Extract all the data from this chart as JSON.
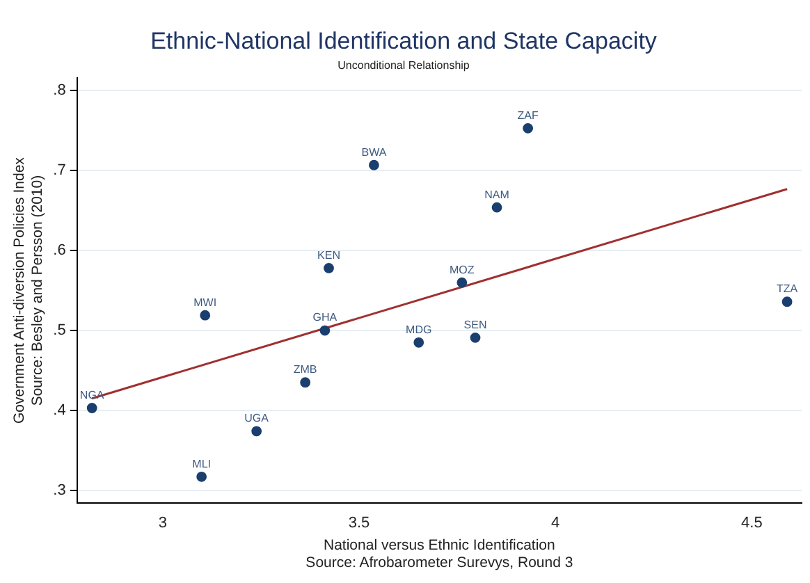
{
  "chart_data": {
    "type": "scatter",
    "title": "Ethnic-National Identification and State Capacity",
    "subtitle": "Unconditional Relationship",
    "xlabel": "National versus Ethnic Identification\nSource: Afrobarometer Surevys, Round 3",
    "ylabel": "Government Anti-diversion Policies Index\nSource: Besley and Persson (2010)",
    "x": [
      2.82,
      3.099,
      3.239,
      3.363,
      3.413,
      3.108,
      3.423,
      3.538,
      3.652,
      3.93,
      3.851,
      3.762,
      3.796,
      4.59
    ],
    "series": [
      {
        "color": "#1a3f6f",
        "marker": "circle",
        "values": [
          0.403,
          0.317,
          0.374,
          0.435,
          0.5,
          0.519,
          0.578,
          0.707,
          0.485,
          0.753,
          0.654,
          0.56,
          0.491,
          0.536
        ]
      },
      {
        "type": "line",
        "marker": "none",
        "color": "#a03030",
        "x": [
          2.82,
          4.59
        ],
        "values": [
          0.415,
          0.677
        ]
      }
    ],
    "annotations": [
      {
        "text": "NGA",
        "x": 2.82,
        "y": 0.403
      },
      {
        "text": "MLI",
        "x": 3.099,
        "y": 0.317
      },
      {
        "text": "UGA",
        "x": 3.239,
        "y": 0.374
      },
      {
        "text": "ZMB",
        "x": 3.363,
        "y": 0.435
      },
      {
        "text": "GHA",
        "x": 3.413,
        "y": 0.5
      },
      {
        "text": "MWI",
        "x": 3.108,
        "y": 0.519
      },
      {
        "text": "KEN",
        "x": 3.423,
        "y": 0.578
      },
      {
        "text": "BWA",
        "x": 3.538,
        "y": 0.707
      },
      {
        "text": "MDG",
        "x": 3.652,
        "y": 0.485
      },
      {
        "text": "ZAF",
        "x": 3.93,
        "y": 0.753
      },
      {
        "text": "NAM",
        "x": 3.851,
        "y": 0.654
      },
      {
        "text": "MOZ",
        "x": 3.762,
        "y": 0.56
      },
      {
        "text": "SEN",
        "x": 3.796,
        "y": 0.491
      },
      {
        "text": "TZA",
        "x": 4.59,
        "y": 0.536
      }
    ],
    "xlim": [
      2.782,
      4.627
    ],
    "xticks": [
      3,
      3.5,
      4,
      4.5
    ],
    "ylim": [
      0.284,
      0.816
    ],
    "yticks": [
      {
        "value": 0.3,
        "label": ".3"
      },
      {
        "value": 0.4,
        "label": ".4"
      },
      {
        "value": 0.5,
        "label": ".5"
      },
      {
        "value": 0.6,
        "label": ".6"
      },
      {
        "value": 0.7,
        "label": ".7"
      },
      {
        "value": 0.8,
        "label": ".8"
      }
    ],
    "grid": "y",
    "legend": false
  }
}
